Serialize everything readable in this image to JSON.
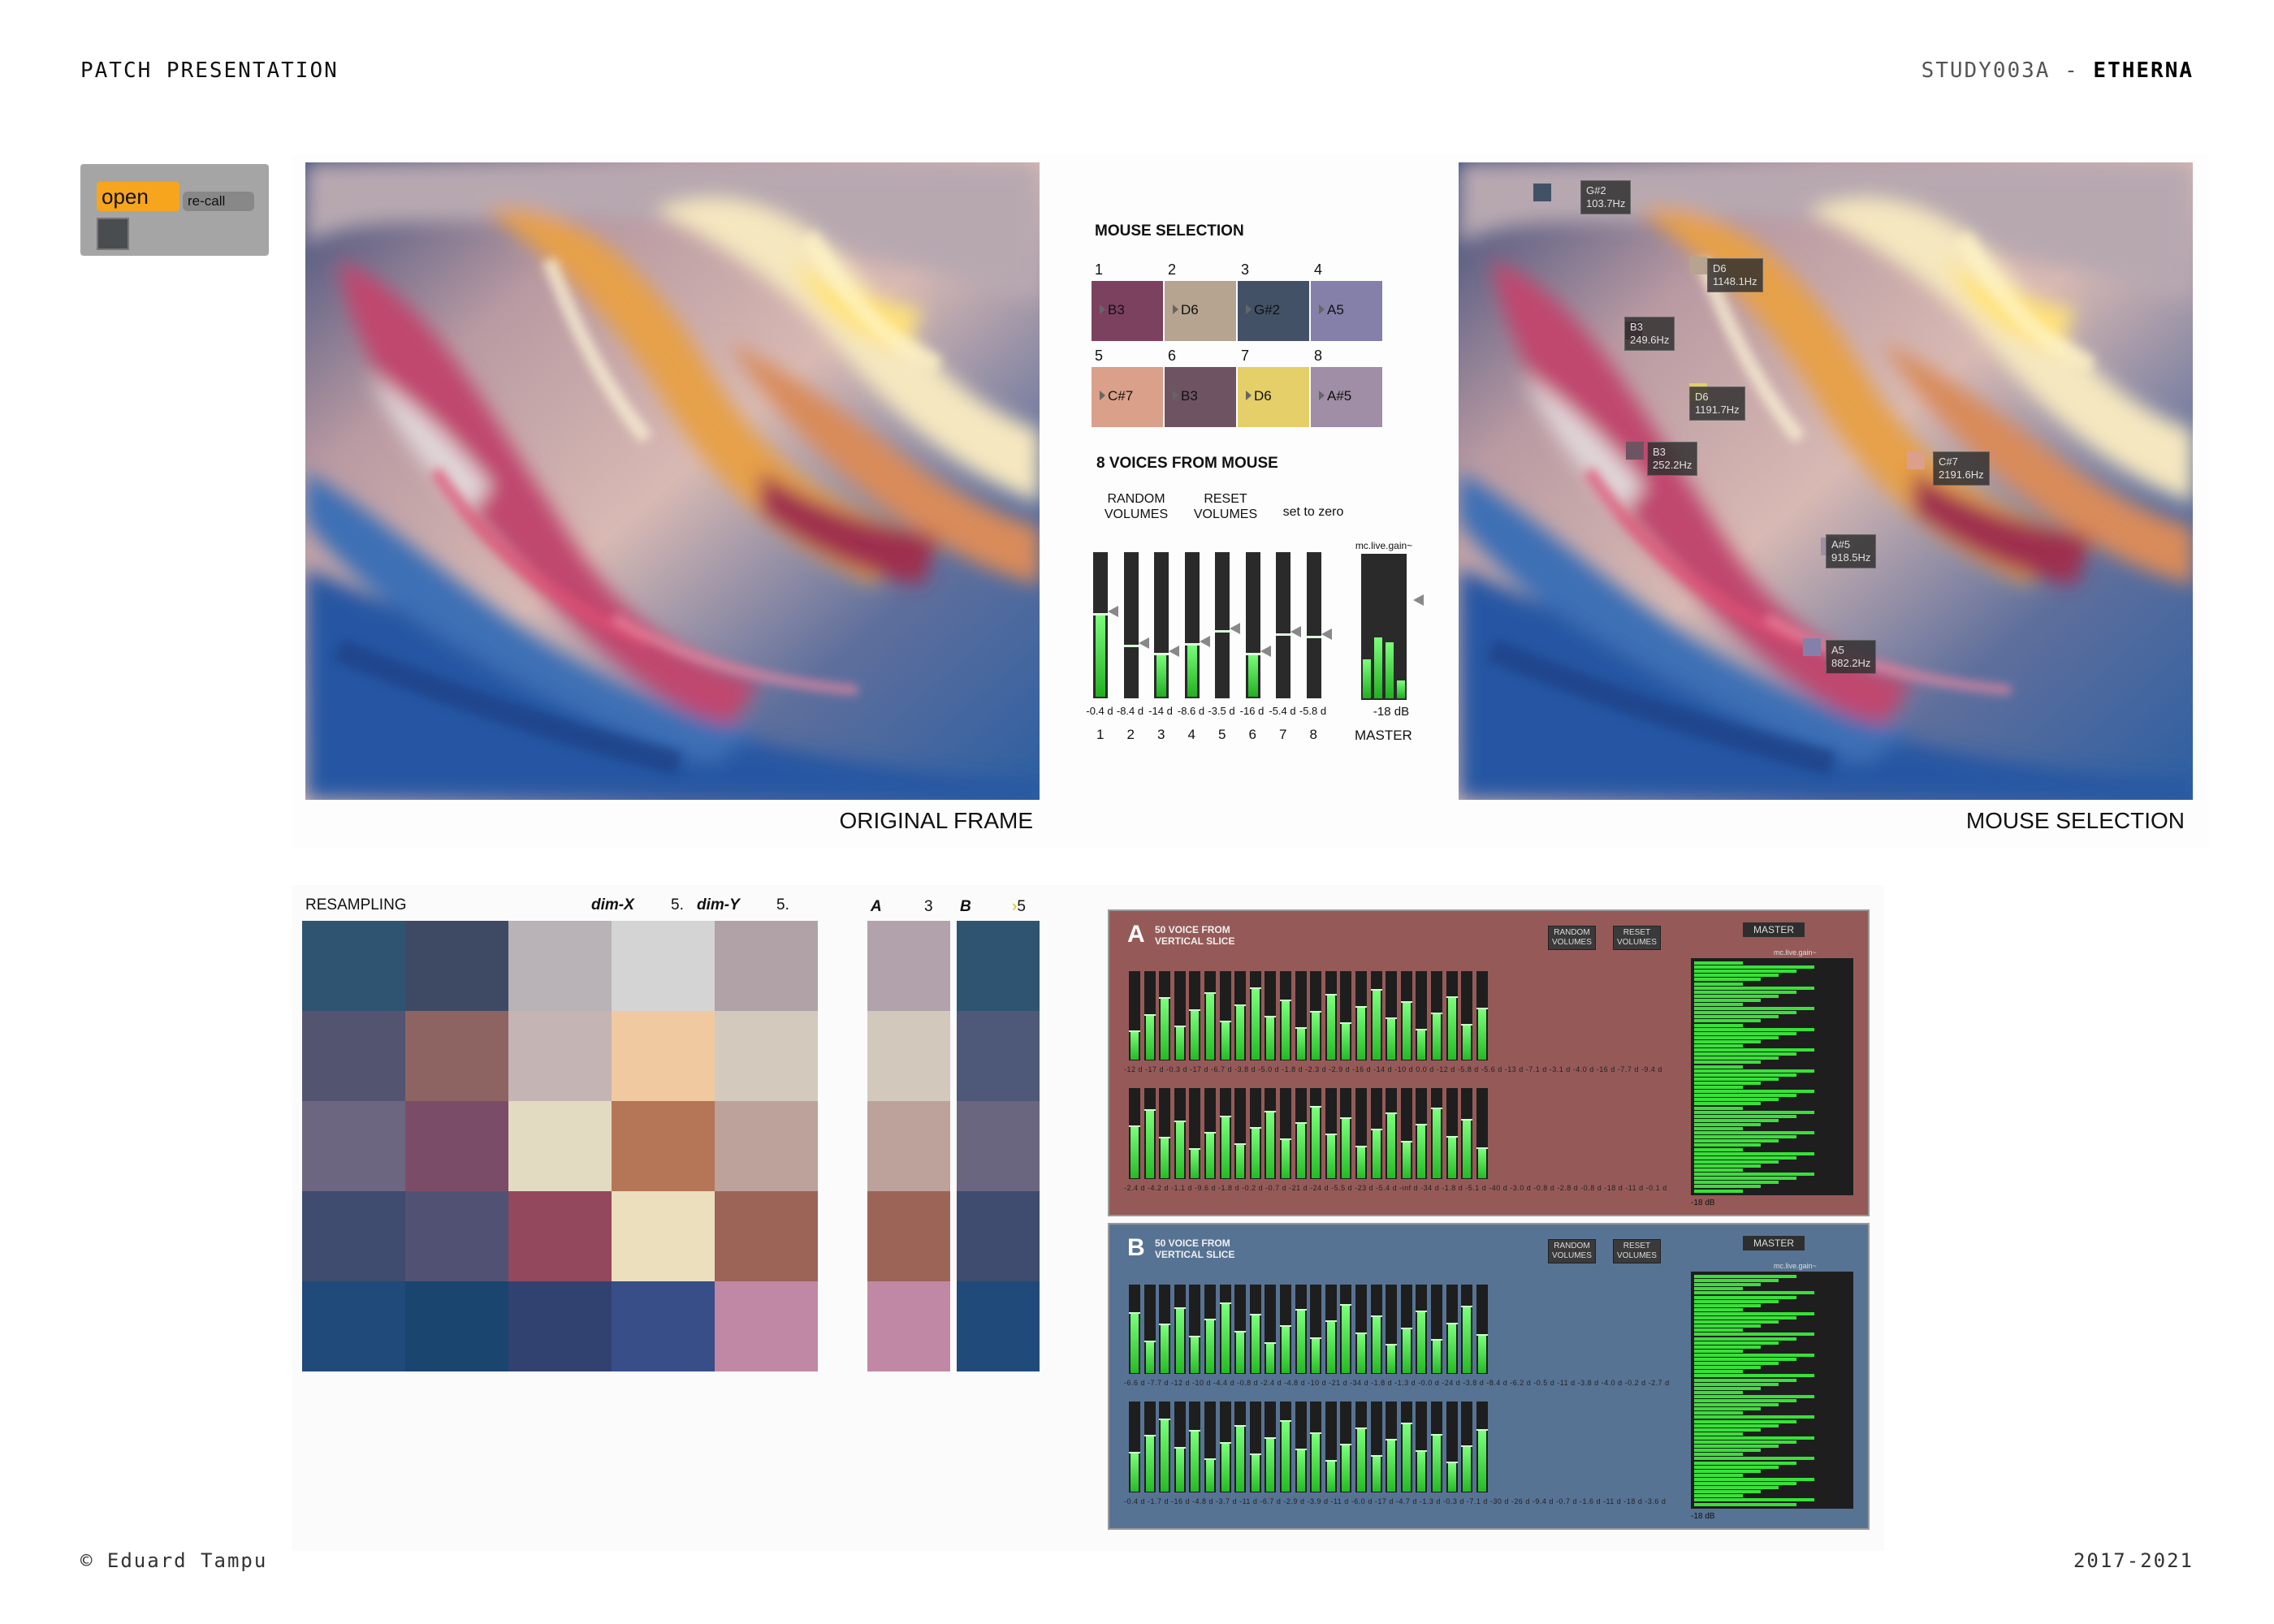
{
  "header": {
    "left": "PATCH PRESENTATION",
    "right_prefix": "STUDY003A - ",
    "right_bold": "ETHERNA"
  },
  "footer": {
    "left": "© Eduard Tampu",
    "right": "2017-2021"
  },
  "open_panel": {
    "open_label": "open",
    "recall_label": "re-call"
  },
  "captions": {
    "original": "ORIGINAL FRAME",
    "mouse": "MOUSE SELECTION"
  },
  "mouse_selection": {
    "title": "MOUSE SELECTION",
    "swatches": [
      {
        "num": "1",
        "note": "B3",
        "color": "#7d4160"
      },
      {
        "num": "2",
        "note": "D6",
        "color": "#b6a490"
      },
      {
        "num": "3",
        "note": "G#2",
        "color": "#435166"
      },
      {
        "num": "4",
        "note": "A5",
        "color": "#8580a9"
      },
      {
        "num": "5",
        "note": "C#7",
        "color": "#daa08a"
      },
      {
        "num": "6",
        "note": "B3",
        "color": "#6e5463"
      },
      {
        "num": "7",
        "note": "D6",
        "color": "#e4cf68"
      },
      {
        "num": "8",
        "note": "A#5",
        "color": "#9f8ea6"
      }
    ],
    "voices_title": "8 VOICES FROM MOUSE",
    "random_label": "RANDOM\nVOLUMES",
    "reset_label": "RESET\nVOLUMES",
    "zero_label": "set to zero",
    "gain_label": "mc.live.gain~",
    "meters": [
      {
        "value": "-0.4 d",
        "level": 0.58,
        "knob": 0.58,
        "channel": "1"
      },
      {
        "value": "-8.4 d",
        "level": 0.0,
        "knob": 0.36,
        "channel": "2"
      },
      {
        "value": "-14 d",
        "level": 0.3,
        "knob": 0.3,
        "channel": "3"
      },
      {
        "value": "-8.6 d",
        "level": 0.37,
        "knob": 0.37,
        "channel": "4"
      },
      {
        "value": "-3.5 d",
        "level": 0.0,
        "knob": 0.46,
        "channel": "5"
      },
      {
        "value": "-16 d",
        "level": 0.3,
        "knob": 0.3,
        "channel": "6"
      },
      {
        "value": "-5.4 d",
        "level": 0.0,
        "knob": 0.44,
        "channel": "7"
      },
      {
        "value": "-5.8 d",
        "level": 0.0,
        "knob": 0.42,
        "channel": "8"
      }
    ],
    "master_value": "-18 dB",
    "master_label": "MASTER"
  },
  "tags": [
    {
      "note": "G#2",
      "freq": "103.7Hz"
    },
    {
      "note": "D6",
      "freq": "1148.1Hz"
    },
    {
      "note": "B3",
      "freq": "249.6Hz"
    },
    {
      "note": "D6",
      "freq": "1191.7Hz"
    },
    {
      "note": "B3",
      "freq": "252.2Hz"
    },
    {
      "note": "C#7",
      "freq": "2191.6Hz"
    },
    {
      "note": "A#5",
      "freq": "918.5Hz"
    },
    {
      "note": "A5",
      "freq": "882.2Hz"
    }
  ],
  "resampling": {
    "title": "RESAMPLING",
    "dimx_label": "dim-X",
    "dimx_value": "5.",
    "dimy_label": "dim-Y",
    "dimy_value": "5.",
    "a_label": "A",
    "a_value": "3",
    "b_label": "B",
    "b_value": "5",
    "grid": [
      [
        "#2e5471",
        "#3e4a64",
        "#b9b2b6",
        "#d4d4d5",
        "#b0a2a7"
      ],
      [
        "#525470",
        "#8e6463",
        "#c4b4b3",
        "#f1c9a0",
        "#d3c9bd"
      ],
      [
        "#6d6680",
        "#7b4c68",
        "#e2dbc2",
        "#b57557",
        "#bca29a"
      ],
      [
        "#3f4b6f",
        "#515273",
        "#93485e",
        "#ebdfbe",
        "#9c6457"
      ],
      [
        "#1f4a7a",
        "#19456f",
        "#324270",
        "#374e88",
        "#c088a4"
      ]
    ],
    "col_a": [
      "#b2a2ab",
      "#d2c8bc",
      "#bca29a",
      "#9c6457",
      "#c088a4"
    ],
    "col_b": [
      "#2e5471",
      "#4e5878",
      "#6b6680",
      "#3f4b6f",
      "#1f4a7a"
    ]
  },
  "voice_panels": [
    {
      "letter": "A",
      "title": "50 VOICE FROM\nVERTICAL SLICE",
      "bg": "#955a58",
      "random": "RANDOM\nVOLUMES",
      "reset": "RESET\nVOLUMES",
      "master": "MASTER",
      "gain": "mc.live.gain~",
      "db": "-18 dB",
      "row1_values": [
        "-12 d",
        "-17 d",
        "-0.3 d",
        "-17 d",
        "-6.7 d",
        "-3.8 d",
        "-5.0 d",
        "-1.8 d",
        "-2.3 d",
        "-2.9 d",
        "-16 d",
        "-14 d",
        "-10 d",
        "0.0 d",
        "-12 d",
        "-5.8 d",
        "-5.6 d",
        "-13 d",
        "-7.1 d",
        "-3.1 d",
        "-4.0 d",
        "-16 d",
        "-7.7 d",
        "-9.4 d"
      ],
      "row2_values": [
        "-2.4 d",
        "-4.2 d",
        "-1.1 d",
        "-9.6 d",
        "-1.8 d",
        "-0.2 d",
        "-0.7 d",
        "-21 d",
        "-24 d",
        "-5.5 d",
        "-23 d",
        "-5.4 d",
        "-inf d",
        "-34 d",
        "-1.8 d",
        "-5.1 d",
        "-40 d",
        "-3.0 d",
        "-0.8 d",
        "-2.8 d",
        "-0.8 d",
        "-18 d",
        "-11 d",
        "-0.1 d"
      ]
    },
    {
      "letter": "B",
      "title": "50 VOICE FROM\nVERTICAL SLICE",
      "bg": "#577394",
      "random": "RANDOM\nVOLUMES",
      "reset": "RESET\nVOLUMES",
      "master": "MASTER",
      "gain": "mc.live.gain~",
      "db": "-18 dB",
      "row1_values": [
        "-6.6 d",
        "-7.7 d",
        "-12 d",
        "-10 d",
        "-4.4 d",
        "-0.8 d",
        "-2.4 d",
        "-4.8 d",
        "-10 d",
        "-21 d",
        "-34 d",
        "-1.8 d",
        "-1.3 d",
        "-0.0 d",
        "-24 d",
        "-3.8 d",
        "-8.4 d",
        "-6.2 d",
        "-0.5 d",
        "-11 d",
        "-3.8 d",
        "-4.0 d",
        "-0.2 d",
        "-2.7 d"
      ],
      "row2_values": [
        "-0.4 d",
        "-1.7 d",
        "-16 d",
        "-4.8 d",
        "-3.7 d",
        "-11 d",
        "-6.7 d",
        "-2.9 d",
        "-3.9 d",
        "-11 d",
        "-6.0 d",
        "-17 d",
        "-4.7 d",
        "-1.3 d",
        "-0.3 d",
        "-7.1 d",
        "-30 d",
        "-26 d",
        "-9.4 d",
        "-0.7 d",
        "-1.6 d",
        "-11 d",
        "-18 d",
        "-3.6 d"
      ]
    }
  ]
}
